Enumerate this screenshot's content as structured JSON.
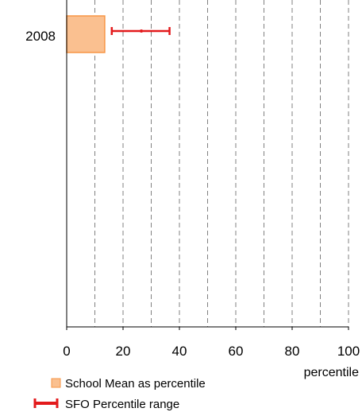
{
  "chart_data": {
    "type": "bar",
    "orientation": "horizontal",
    "categories": [
      "2008"
    ],
    "series": [
      {
        "name": "School Mean as percentile",
        "values": [
          13.5
        ]
      }
    ],
    "ranges": [
      {
        "name": "SFO Percentile range",
        "low": [
          16
        ],
        "mid": [
          26.5
        ],
        "high": [
          36.5
        ]
      }
    ],
    "x_ticks": [
      0,
      20,
      40,
      60,
      80,
      100
    ],
    "xlabel": "percentile",
    "xlim": [
      0,
      100
    ],
    "grid": "vertical dashed every 10",
    "legend_position": "bottom-left",
    "colors": {
      "bar_fill": "#FAC090",
      "bar_stroke": "#F79646",
      "range": "#E31A1C",
      "grid": "#808080"
    }
  }
}
